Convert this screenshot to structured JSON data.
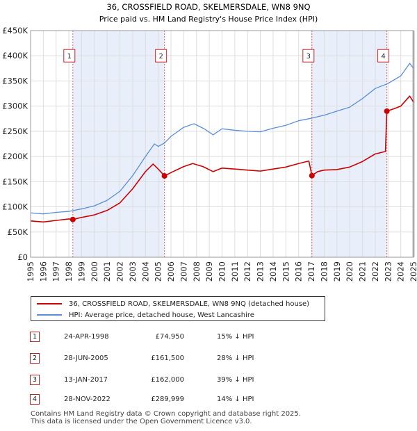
{
  "chart_data": {
    "type": "line",
    "title": "36, CROSSFIELD ROAD, SKELMERSDALE, WN8 9NQ",
    "subtitle": "Price paid vs. HM Land Registry's House Price Index (HPI)",
    "x_range": [
      1995,
      2025
    ],
    "ylim": [
      0,
      450000
    ],
    "y_ticks": [
      "£0",
      "£50K",
      "£100K",
      "£150K",
      "£200K",
      "£250K",
      "£300K",
      "£350K",
      "£400K",
      "£450K"
    ],
    "y_tick_values": [
      0,
      50000,
      100000,
      150000,
      200000,
      250000,
      300000,
      350000,
      400000,
      450000
    ],
    "x_ticks": [
      "1995",
      "1996",
      "1997",
      "1998",
      "1999",
      "2000",
      "2001",
      "2002",
      "2003",
      "2004",
      "2005",
      "2006",
      "2007",
      "2008",
      "2009",
      "2010",
      "2011",
      "2012",
      "2013",
      "2014",
      "2015",
      "2016",
      "2017",
      "2018",
      "2019",
      "2020",
      "2021",
      "2022",
      "2023",
      "2024",
      "2025"
    ],
    "grid": true,
    "colors": {
      "property": "#cc0000",
      "hpi": "#5b8ed4",
      "shade": "#e8eefa",
      "marker_border": "#cc2222"
    },
    "series": [
      {
        "name": "36, CROSSFIELD ROAD, SKELMERSDALE, WN8 9NQ (detached house)",
        "points": [
          [
            1995.0,
            72000
          ],
          [
            1996.0,
            70000
          ],
          [
            1997.0,
            73000
          ],
          [
            1998.0,
            76000
          ],
          [
            1998.31,
            74950
          ],
          [
            1999.0,
            79000
          ],
          [
            2000.0,
            84000
          ],
          [
            2001.0,
            93000
          ],
          [
            2002.0,
            108000
          ],
          [
            2003.0,
            136000
          ],
          [
            2004.0,
            170000
          ],
          [
            2004.6,
            185000
          ],
          [
            2005.0,
            175000
          ],
          [
            2005.49,
            161500
          ],
          [
            2006.0,
            168000
          ],
          [
            2007.0,
            180000
          ],
          [
            2007.7,
            186000
          ],
          [
            2008.5,
            180000
          ],
          [
            2009.3,
            170000
          ],
          [
            2010.0,
            177000
          ],
          [
            2011.0,
            175000
          ],
          [
            2012.0,
            173000
          ],
          [
            2013.0,
            171000
          ],
          [
            2014.0,
            175000
          ],
          [
            2015.0,
            179000
          ],
          [
            2016.0,
            186000
          ],
          [
            2016.8,
            191000
          ],
          [
            2017.04,
            162000
          ],
          [
            2017.5,
            170000
          ],
          [
            2018.0,
            173000
          ],
          [
            2019.0,
            174000
          ],
          [
            2020.0,
            179000
          ],
          [
            2021.0,
            190000
          ],
          [
            2022.0,
            205000
          ],
          [
            2022.8,
            210000
          ],
          [
            2022.91,
            289999
          ],
          [
            2023.5,
            295000
          ],
          [
            2024.0,
            300000
          ],
          [
            2024.7,
            320000
          ],
          [
            2025.0,
            308000
          ]
        ]
      },
      {
        "name": "HPI: Average price, detached house, West Lancashire",
        "points": [
          [
            1995.0,
            88000
          ],
          [
            1996.0,
            86000
          ],
          [
            1997.0,
            89000
          ],
          [
            1998.0,
            91000
          ],
          [
            1999.0,
            96000
          ],
          [
            2000.0,
            102000
          ],
          [
            2001.0,
            113000
          ],
          [
            2002.0,
            131000
          ],
          [
            2003.0,
            162000
          ],
          [
            2004.0,
            200000
          ],
          [
            2004.7,
            225000
          ],
          [
            2005.0,
            220000
          ],
          [
            2005.5,
            227000
          ],
          [
            2006.0,
            240000
          ],
          [
            2007.0,
            258000
          ],
          [
            2007.8,
            265000
          ],
          [
            2008.6,
            255000
          ],
          [
            2009.3,
            243000
          ],
          [
            2010.0,
            255000
          ],
          [
            2011.0,
            252000
          ],
          [
            2012.0,
            250000
          ],
          [
            2013.0,
            249000
          ],
          [
            2014.0,
            256000
          ],
          [
            2015.0,
            262000
          ],
          [
            2016.0,
            271000
          ],
          [
            2017.0,
            276000
          ],
          [
            2018.0,
            282000
          ],
          [
            2019.0,
            290000
          ],
          [
            2020.0,
            298000
          ],
          [
            2021.0,
            315000
          ],
          [
            2022.0,
            335000
          ],
          [
            2023.0,
            345000
          ],
          [
            2024.0,
            360000
          ],
          [
            2024.7,
            385000
          ],
          [
            2025.0,
            375000
          ]
        ]
      }
    ],
    "transactions": [
      {
        "label": "1",
        "date": "24-APR-1998",
        "x": 1998.31,
        "price": "£74,950",
        "value": 74950,
        "hpi": "15% ↓ HPI"
      },
      {
        "label": "2",
        "date": "28-JUN-2005",
        "x": 2005.49,
        "price": "£161,500",
        "value": 161500,
        "hpi": "28% ↓ HPI"
      },
      {
        "label": "3",
        "date": "13-JAN-2017",
        "x": 2017.04,
        "price": "£162,000",
        "value": 162000,
        "hpi": "39% ↓ HPI"
      },
      {
        "label": "4",
        "date": "28-NOV-2022",
        "x": 2022.91,
        "price": "£289,999",
        "value": 289999,
        "hpi": "14% ↓ HPI"
      }
    ],
    "label_price": 400000,
    "projection_start": 2025.0
  },
  "legend": {
    "property_label": "36, CROSSFIELD ROAD, SKELMERSDALE, WN8 9NQ (detached house)",
    "hpi_label": "HPI: Average price, detached house, West Lancashire"
  },
  "footer": {
    "line1": "Contains HM Land Registry data © Crown copyright and database right 2025.",
    "line2": "This data is licensed under the Open Government Licence v3.0."
  }
}
